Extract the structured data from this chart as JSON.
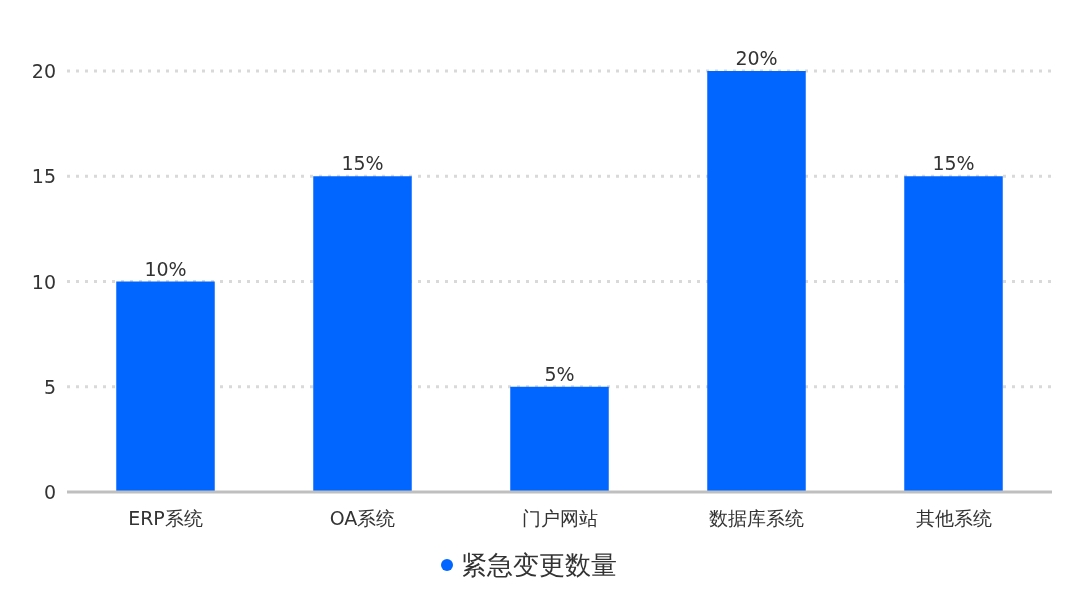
{
  "chart_data": {
    "type": "bar",
    "categories": [
      "ERP系统",
      "OA系统",
      "门户网站",
      "数据库系统",
      "其他系统"
    ],
    "series": [
      {
        "name": "紧急变更数量",
        "color": "#0066ff",
        "values": [
          10,
          15,
          5,
          20,
          15
        ],
        "value_labels": [
          "10%",
          "15%",
          "5%",
          "20%",
          "15%"
        ]
      }
    ],
    "ylim": [
      0,
      20
    ],
    "yticks": [
      0,
      5,
      10,
      15,
      20
    ],
    "grid": "y",
    "legend": "bottom"
  }
}
